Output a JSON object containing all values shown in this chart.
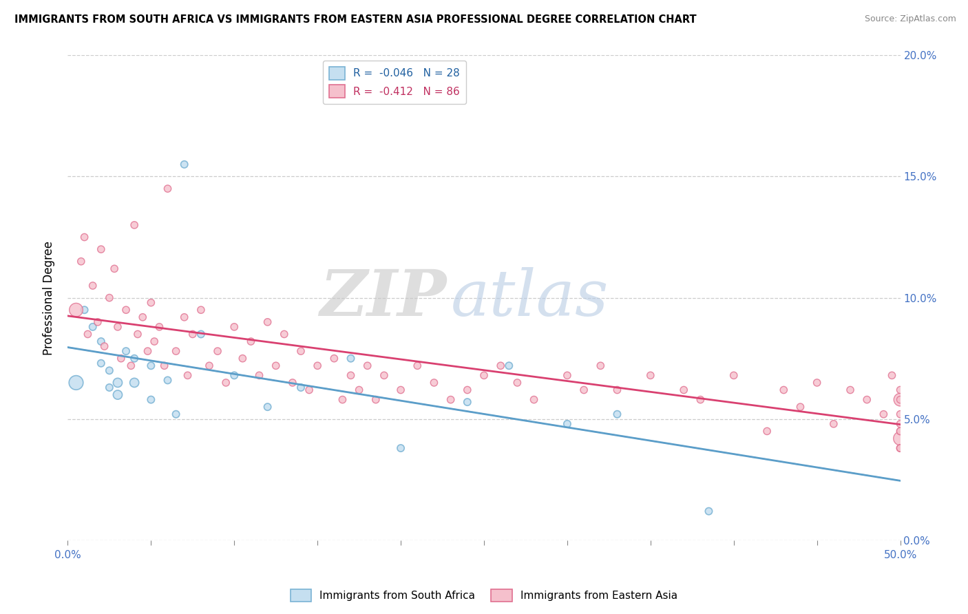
{
  "title": "IMMIGRANTS FROM SOUTH AFRICA VS IMMIGRANTS FROM EASTERN ASIA PROFESSIONAL DEGREE CORRELATION CHART",
  "source": "Source: ZipAtlas.com",
  "ylabel": "Professional Degree",
  "legend1_label": "Immigrants from South Africa",
  "legend2_label": "Immigrants from Eastern Asia",
  "R1": -0.046,
  "N1": 28,
  "R2": -0.412,
  "N2": 86,
  "color_blue": "#c5dff0",
  "edgecolor_blue": "#7ab3d4",
  "color_pink": "#f5c0cc",
  "edgecolor_pink": "#e07090",
  "line_color_blue": "#5b9ec9",
  "line_color_pink": "#d94070",
  "xlim": [
    0.0,
    0.5
  ],
  "ylim": [
    0.0,
    0.2
  ],
  "watermark_part1": "ZIP",
  "watermark_part2": "atlas",
  "bg_color": "#ffffff",
  "blue_x": [
    0.005,
    0.01,
    0.015,
    0.02,
    0.02,
    0.025,
    0.025,
    0.03,
    0.03,
    0.035,
    0.04,
    0.04,
    0.05,
    0.05,
    0.06,
    0.065,
    0.07,
    0.08,
    0.1,
    0.12,
    0.14,
    0.17,
    0.2,
    0.24,
    0.265,
    0.3,
    0.33,
    0.385
  ],
  "blue_y": [
    0.065,
    0.095,
    0.088,
    0.082,
    0.073,
    0.07,
    0.063,
    0.065,
    0.06,
    0.078,
    0.065,
    0.075,
    0.058,
    0.072,
    0.066,
    0.052,
    0.155,
    0.085,
    0.068,
    0.055,
    0.063,
    0.075,
    0.038,
    0.057,
    0.072,
    0.048,
    0.052,
    0.012
  ],
  "blue_sizes": [
    220,
    55,
    55,
    55,
    55,
    55,
    55,
    90,
    90,
    55,
    90,
    55,
    55,
    55,
    55,
    55,
    55,
    55,
    55,
    55,
    55,
    55,
    55,
    55,
    55,
    55,
    55,
    55
  ],
  "pink_x": [
    0.005,
    0.008,
    0.01,
    0.012,
    0.015,
    0.018,
    0.02,
    0.022,
    0.025,
    0.028,
    0.03,
    0.032,
    0.035,
    0.038,
    0.04,
    0.042,
    0.045,
    0.048,
    0.05,
    0.052,
    0.055,
    0.058,
    0.06,
    0.065,
    0.07,
    0.072,
    0.075,
    0.08,
    0.085,
    0.09,
    0.095,
    0.1,
    0.105,
    0.11,
    0.115,
    0.12,
    0.125,
    0.13,
    0.135,
    0.14,
    0.145,
    0.15,
    0.16,
    0.165,
    0.17,
    0.175,
    0.18,
    0.185,
    0.19,
    0.2,
    0.21,
    0.22,
    0.23,
    0.24,
    0.25,
    0.26,
    0.27,
    0.28,
    0.3,
    0.31,
    0.32,
    0.33,
    0.35,
    0.37,
    0.38,
    0.4,
    0.42,
    0.43,
    0.44,
    0.45,
    0.46,
    0.47,
    0.48,
    0.49,
    0.495,
    0.5,
    0.5,
    0.5,
    0.5,
    0.5,
    0.5,
    0.5,
    0.5,
    0.5,
    0.5,
    0.5
  ],
  "pink_y": [
    0.095,
    0.115,
    0.125,
    0.085,
    0.105,
    0.09,
    0.12,
    0.08,
    0.1,
    0.112,
    0.088,
    0.075,
    0.095,
    0.072,
    0.13,
    0.085,
    0.092,
    0.078,
    0.098,
    0.082,
    0.088,
    0.072,
    0.145,
    0.078,
    0.092,
    0.068,
    0.085,
    0.095,
    0.072,
    0.078,
    0.065,
    0.088,
    0.075,
    0.082,
    0.068,
    0.09,
    0.072,
    0.085,
    0.065,
    0.078,
    0.062,
    0.072,
    0.075,
    0.058,
    0.068,
    0.062,
    0.072,
    0.058,
    0.068,
    0.062,
    0.072,
    0.065,
    0.058,
    0.062,
    0.068,
    0.072,
    0.065,
    0.058,
    0.068,
    0.062,
    0.072,
    0.062,
    0.068,
    0.062,
    0.058,
    0.068,
    0.045,
    0.062,
    0.055,
    0.065,
    0.048,
    0.062,
    0.058,
    0.052,
    0.068,
    0.042,
    0.058,
    0.052,
    0.045,
    0.038,
    0.058,
    0.045,
    0.038,
    0.062,
    0.048,
    0.038
  ],
  "pink_sizes": [
    200,
    55,
    55,
    55,
    55,
    55,
    55,
    55,
    55,
    55,
    55,
    55,
    55,
    55,
    55,
    55,
    55,
    55,
    55,
    55,
    55,
    55,
    55,
    55,
    55,
    55,
    55,
    55,
    55,
    55,
    55,
    55,
    55,
    55,
    55,
    55,
    55,
    55,
    55,
    55,
    55,
    55,
    55,
    55,
    55,
    55,
    55,
    55,
    55,
    55,
    55,
    55,
    55,
    55,
    55,
    55,
    55,
    55,
    55,
    55,
    55,
    55,
    55,
    55,
    55,
    55,
    55,
    55,
    55,
    55,
    55,
    55,
    55,
    55,
    55,
    200,
    180,
    55,
    55,
    55,
    55,
    55,
    55,
    55,
    55,
    55
  ]
}
